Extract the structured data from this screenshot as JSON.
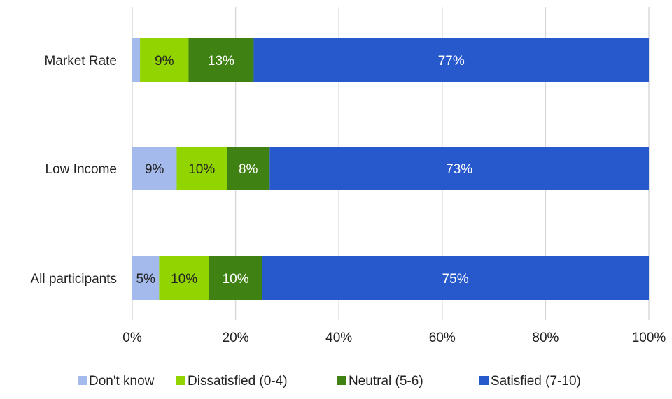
{
  "chart_data": {
    "type": "bar",
    "orientation": "horizontal",
    "stacked": true,
    "categories": [
      "Market Rate",
      "Low Income",
      "All participants"
    ],
    "series": [
      {
        "name": "Don't know",
        "color": "#a4b9ec",
        "label_color": "#222222",
        "values": [
          1.5,
          8.6,
          5.2
        ],
        "labels": [
          "",
          "9%",
          "5%"
        ]
      },
      {
        "name": "Dissatisfied (0-4)",
        "color": "#92d400",
        "label_color": "#222222",
        "values": [
          9.4,
          9.7,
          9.7
        ],
        "labels": [
          "9%",
          "10%",
          "10%"
        ]
      },
      {
        "name": "Neutral (5-6)",
        "color": "#3f8112",
        "label_color": "#ffffff",
        "values": [
          12.6,
          8.3,
          10.2
        ],
        "labels": [
          "13%",
          "8%",
          "10%"
        ]
      },
      {
        "name": "Satisfied (7-10)",
        "color": "#2758cc",
        "label_color": "#ffffff",
        "values": [
          76.5,
          73.4,
          74.9
        ],
        "labels": [
          "77%",
          "73%",
          "75%"
        ]
      }
    ],
    "xlim": [
      0,
      100
    ],
    "x_ticks": [
      "0%",
      "20%",
      "40%",
      "60%",
      "80%",
      "100%"
    ],
    "x_tick_values": [
      0,
      20,
      40,
      60,
      80,
      100
    ],
    "xlabel": "",
    "ylabel": "",
    "grid": "vertical",
    "legend_position": "bottom"
  }
}
